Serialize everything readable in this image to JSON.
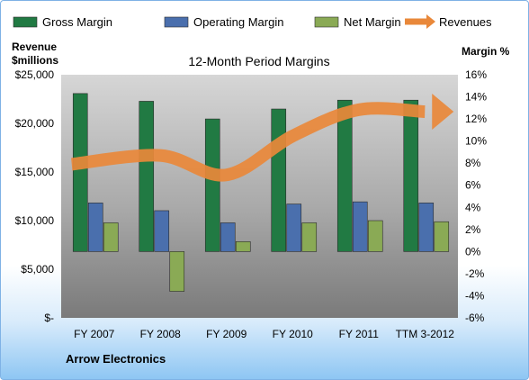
{
  "chart_data": {
    "type": "bar",
    "title": "12-Month Period Margins",
    "company": "Arrow Electronics",
    "categories": [
      "FY 2007",
      "FY 2008",
      "FY 2009",
      "FY 2010",
      "FY 2011",
      "TTM 3-2012"
    ],
    "y_left": {
      "label_line1": "Revenue",
      "label_line2": "$millions",
      "ticks": [
        0,
        5000,
        10000,
        15000,
        20000,
        25000
      ],
      "tick_labels": [
        "$-",
        "$5,000",
        "$10,000",
        "$15,000",
        "$20,000",
        "$25,000"
      ],
      "ylim": [
        0,
        25000
      ]
    },
    "y_right": {
      "label": "Margin %",
      "ticks": [
        -6,
        -4,
        -2,
        0,
        2,
        4,
        6,
        8,
        10,
        12,
        14,
        16
      ],
      "tick_labels": [
        "-6%",
        "-4%",
        "-2%",
        "0%",
        "2%",
        "4%",
        "6%",
        "8%",
        "10%",
        "12%",
        "14%",
        "16%"
      ],
      "ylim": [
        -6,
        16
      ]
    },
    "series": [
      {
        "name": "Gross Margin",
        "axis": "right",
        "kind": "bar",
        "color": "#217a43",
        "values": [
          14.3,
          13.6,
          12.0,
          12.9,
          13.7,
          13.7
        ]
      },
      {
        "name": "Operating Margin",
        "axis": "right",
        "kind": "bar",
        "color": "#4a6fad",
        "values": [
          4.4,
          3.7,
          2.6,
          4.3,
          4.5,
          4.4
        ]
      },
      {
        "name": "Net Margin",
        "axis": "right",
        "kind": "bar",
        "color": "#8aaa55",
        "values": [
          2.6,
          -3.6,
          0.9,
          2.6,
          2.8,
          2.7
        ]
      },
      {
        "name": "Revenues",
        "axis": "left",
        "kind": "line",
        "color": "#e9883a",
        "values": [
          15800,
          16700,
          14700,
          18700,
          21400,
          21200
        ]
      }
    ],
    "legend_position": "top",
    "grid": false
  }
}
